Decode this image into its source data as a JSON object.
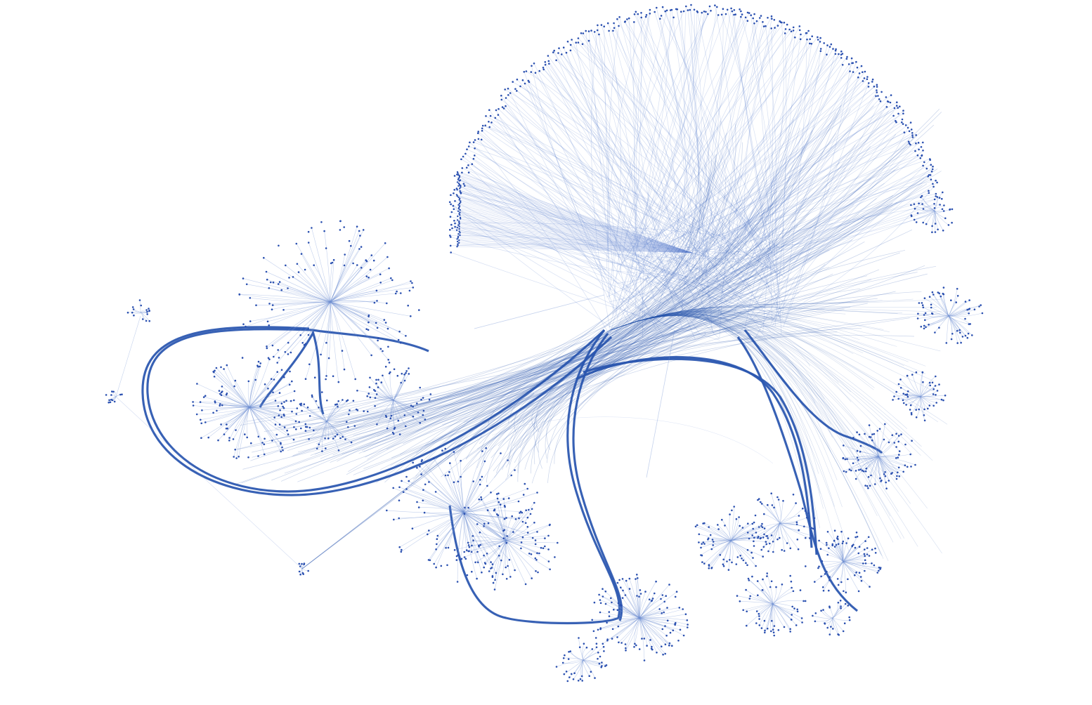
{
  "colors": {
    "background": "#ffffff",
    "edge": "#2c58b0",
    "edge_light": "#6f8fd3",
    "node": "#2a50b0"
  },
  "graph": {
    "type": "edge-bundled-network",
    "legend": "none",
    "labels": "none"
  }
}
